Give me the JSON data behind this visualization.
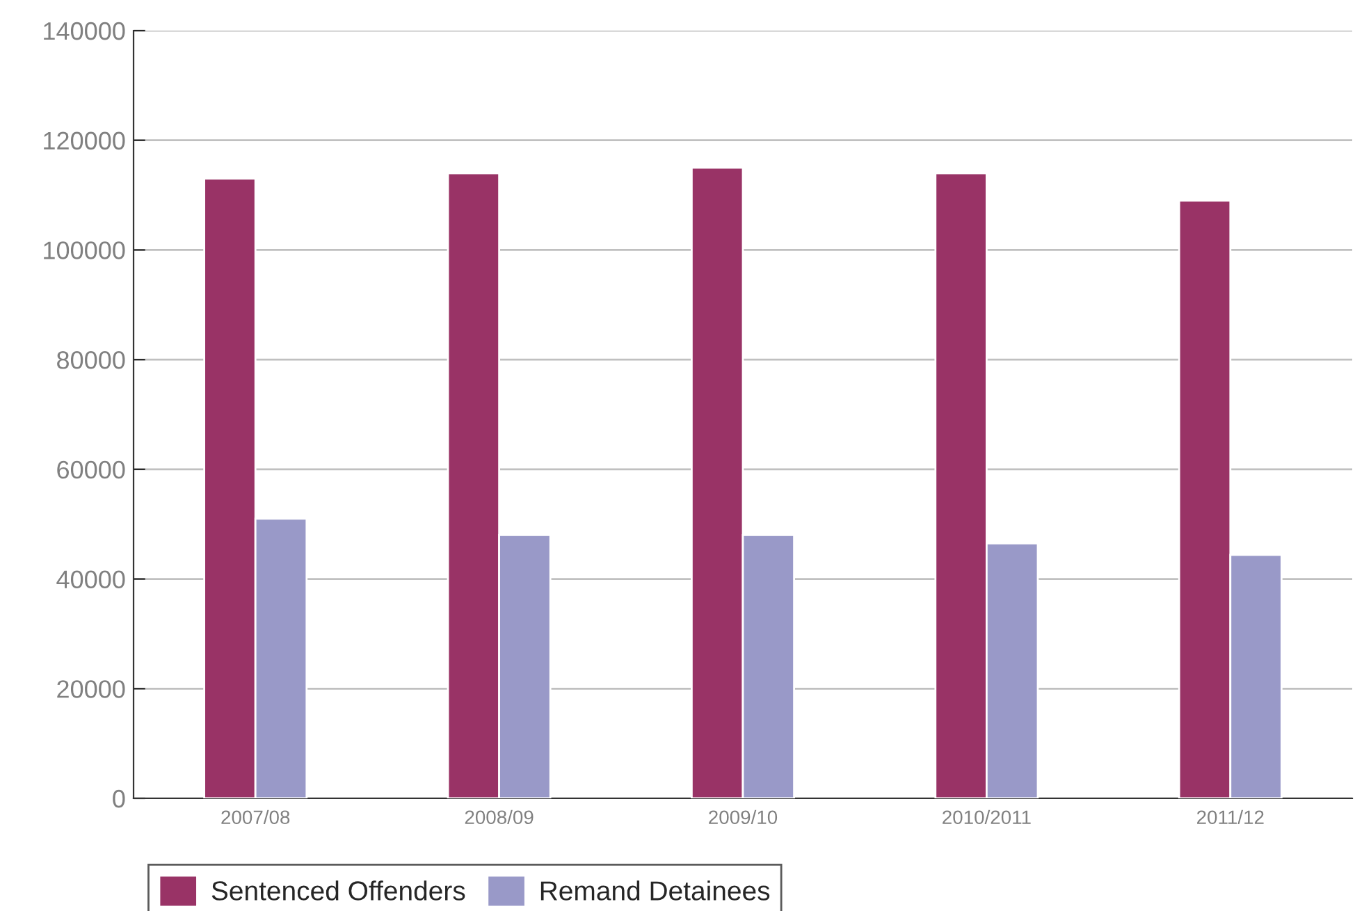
{
  "chart_data": {
    "type": "bar",
    "categories": [
      "2007/08",
      "2008/09",
      "2009/10",
      "2010/2011",
      "2011/12"
    ],
    "series": [
      {
        "name": "Sentenced Offenders",
        "color": "#993366",
        "values": [
          113000,
          114000,
          115000,
          114000,
          109000
        ]
      },
      {
        "name": "Remand Detainees",
        "color": "#9999c8",
        "values": [
          51000,
          48000,
          48000,
          46500,
          44400
        ]
      }
    ],
    "ylim": [
      0,
      140000
    ],
    "yticks": [
      0,
      20000,
      40000,
      60000,
      80000,
      100000,
      120000,
      140000
    ],
    "grid": "y",
    "legend": "bottom left"
  }
}
